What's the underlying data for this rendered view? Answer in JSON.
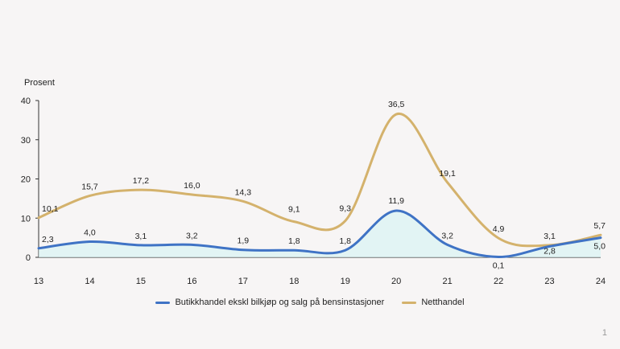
{
  "chart_data": {
    "type": "line",
    "ylabel": "Prosent",
    "ylim": [
      0,
      40
    ],
    "yticks": [
      "0",
      "10",
      "20",
      "30",
      "40"
    ],
    "x": [
      "13",
      "14",
      "15",
      "16",
      "17",
      "18",
      "19",
      "20",
      "21",
      "22",
      "23",
      "24"
    ],
    "series": [
      {
        "name": "Butikkhandel ekskl bilkjøp og salg på bensinstasjoner",
        "color": "#3f73c5",
        "values": [
          2.3,
          4.0,
          3.1,
          3.2,
          1.9,
          1.8,
          1.8,
          11.9,
          3.2,
          0.1,
          2.8,
          5.0
        ],
        "labels": [
          "2,3",
          "4,0",
          "3,1",
          "3,2",
          "1,9",
          "1,8",
          "1,8",
          "11,9",
          "3,2",
          "0,1",
          "2,8",
          "5,0"
        ]
      },
      {
        "name": "Netthandel",
        "color": "#d4b26c",
        "values": [
          10.1,
          15.7,
          17.2,
          16.0,
          14.3,
          9.1,
          9.3,
          36.5,
          19.1,
          4.9,
          3.1,
          5.7
        ],
        "labels": [
          "10,1",
          "15,7",
          "17,2",
          "16,0",
          "14,3",
          "9,1",
          "9,3",
          "36,5",
          "19,1",
          "4,9",
          "3,1",
          "5,7"
        ]
      }
    ],
    "grid": false,
    "legend_position": "bottom"
  },
  "page_number": "1"
}
